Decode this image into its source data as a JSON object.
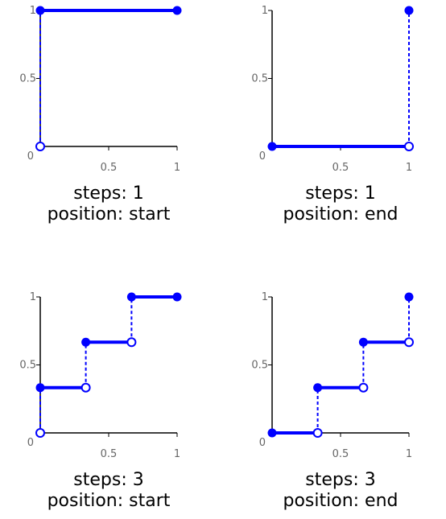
{
  "theme": {
    "series_color": "#0000ff",
    "axis_color": "#000000",
    "tick_label_color": "#666666"
  },
  "chart_data": [
    {
      "type": "line",
      "subtype": "step",
      "caption_line1": "steps: 1",
      "caption_line2": "position: start",
      "xlim": [
        0,
        1
      ],
      "ylim": [
        0,
        1
      ],
      "x_ticks": [
        "0.5",
        "1"
      ],
      "y_ticks": [
        "0.5",
        "1"
      ],
      "origin_label": "0",
      "segments": [
        {
          "x0": 0,
          "x1": 1,
          "y": 1
        }
      ],
      "jumps": [
        {
          "x": 0,
          "y_from": 0,
          "y_to": 1
        }
      ],
      "filled_points": [
        {
          "x": 0,
          "y": 1
        },
        {
          "x": 1,
          "y": 1
        }
      ],
      "open_points": [
        {
          "x": 0,
          "y": 0
        }
      ]
    },
    {
      "type": "line",
      "subtype": "step",
      "caption_line1": "steps: 1",
      "caption_line2": "position: end",
      "xlim": [
        0,
        1
      ],
      "ylim": [
        0,
        1
      ],
      "x_ticks": [
        "0.5",
        "1"
      ],
      "y_ticks": [
        "0.5",
        "1"
      ],
      "origin_label": "0",
      "segments": [
        {
          "x0": 0,
          "x1": 1,
          "y": 0
        }
      ],
      "jumps": [
        {
          "x": 1,
          "y_from": 0,
          "y_to": 1
        }
      ],
      "filled_points": [
        {
          "x": 0,
          "y": 0
        },
        {
          "x": 1,
          "y": 1
        }
      ],
      "open_points": [
        {
          "x": 1,
          "y": 0
        }
      ]
    },
    {
      "type": "line",
      "subtype": "step",
      "caption_line1": "steps: 3",
      "caption_line2": "position: start",
      "xlim": [
        0,
        1
      ],
      "ylim": [
        0,
        1
      ],
      "x_ticks": [
        "0.5",
        "1"
      ],
      "y_ticks": [
        "0.5",
        "1"
      ],
      "origin_label": "0",
      "segments": [
        {
          "x0": 0,
          "x1": 0.333,
          "y": 0.333
        },
        {
          "x0": 0.333,
          "x1": 0.667,
          "y": 0.667
        },
        {
          "x0": 0.667,
          "x1": 1,
          "y": 1
        }
      ],
      "jumps": [
        {
          "x": 0,
          "y_from": 0,
          "y_to": 0.333
        },
        {
          "x": 0.333,
          "y_from": 0.333,
          "y_to": 0.667
        },
        {
          "x": 0.667,
          "y_from": 0.667,
          "y_to": 1
        }
      ],
      "filled_points": [
        {
          "x": 0,
          "y": 0.333
        },
        {
          "x": 0.333,
          "y": 0.667
        },
        {
          "x": 0.667,
          "y": 1
        },
        {
          "x": 1,
          "y": 1
        }
      ],
      "open_points": [
        {
          "x": 0,
          "y": 0
        },
        {
          "x": 0.333,
          "y": 0.333
        },
        {
          "x": 0.667,
          "y": 0.667
        }
      ]
    },
    {
      "type": "line",
      "subtype": "step",
      "caption_line1": "steps: 3",
      "caption_line2": "position: end",
      "xlim": [
        0,
        1
      ],
      "ylim": [
        0,
        1
      ],
      "x_ticks": [
        "0.5",
        "1"
      ],
      "y_ticks": [
        "0.5",
        "1"
      ],
      "origin_label": "0",
      "segments": [
        {
          "x0": 0,
          "x1": 0.333,
          "y": 0
        },
        {
          "x0": 0.333,
          "x1": 0.667,
          "y": 0.333
        },
        {
          "x0": 0.667,
          "x1": 1,
          "y": 0.667
        }
      ],
      "jumps": [
        {
          "x": 0.333,
          "y_from": 0,
          "y_to": 0.333
        },
        {
          "x": 0.667,
          "y_from": 0.333,
          "y_to": 0.667
        },
        {
          "x": 1,
          "y_from": 0.667,
          "y_to": 1
        }
      ],
      "filled_points": [
        {
          "x": 0,
          "y": 0
        },
        {
          "x": 0.333,
          "y": 0.333
        },
        {
          "x": 0.667,
          "y": 0.667
        },
        {
          "x": 1,
          "y": 1
        }
      ],
      "open_points": [
        {
          "x": 0.333,
          "y": 0
        },
        {
          "x": 0.667,
          "y": 0.333
        },
        {
          "x": 1,
          "y": 0.667
        }
      ]
    }
  ]
}
